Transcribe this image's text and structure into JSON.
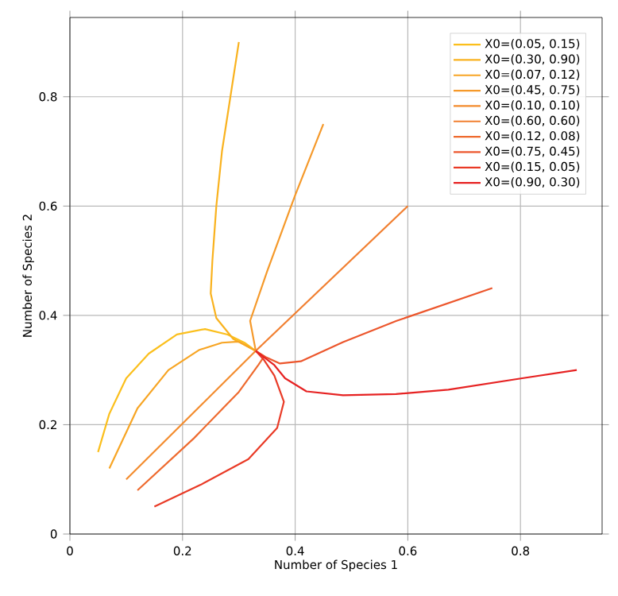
{
  "chart_data": {
    "type": "line",
    "xlabel": "Number of Species 1",
    "ylabel": "Number of Species 2",
    "xlim": [
      0,
      0.945
    ],
    "ylim": [
      0,
      0.945
    ],
    "xticks": [
      0,
      0.2,
      0.4,
      0.6,
      0.8
    ],
    "yticks": [
      0,
      0.2,
      0.4,
      0.6,
      0.8
    ],
    "grid": true,
    "legend": "top right",
    "marker": "none",
    "series": [
      {
        "name": "X0=(0.05, 0.15)",
        "color": "#fbbf1c",
        "x": [
          0.05,
          0.07,
          0.1,
          0.14,
          0.19,
          0.24,
          0.28,
          0.31,
          0.33
        ],
        "values": [
          0.15,
          0.22,
          0.285,
          0.33,
          0.365,
          0.375,
          0.365,
          0.35,
          0.335
        ]
      },
      {
        "name": "X0=(0.30, 0.90)",
        "color": "#f9b21e",
        "x": [
          0.3,
          0.285,
          0.27,
          0.26,
          0.253,
          0.25,
          0.26,
          0.29,
          0.33
        ],
        "values": [
          0.9,
          0.8,
          0.7,
          0.6,
          0.5,
          0.44,
          0.395,
          0.357,
          0.335
        ]
      },
      {
        "name": "X0=(0.07, 0.12)",
        "color": "#f7a524",
        "x": [
          0.07,
          0.12,
          0.175,
          0.23,
          0.27,
          0.3,
          0.33
        ],
        "values": [
          0.12,
          0.23,
          0.3,
          0.337,
          0.35,
          0.352,
          0.335
        ]
      },
      {
        "name": "X0=(0.45, 0.75)",
        "color": "#f5992a",
        "x": [
          0.45,
          0.4,
          0.35,
          0.32,
          0.33
        ],
        "values": [
          0.75,
          0.62,
          0.48,
          0.39,
          0.335
        ]
      },
      {
        "name": "X0=(0.10, 0.10)",
        "color": "#f38c2e",
        "x": [
          0.1,
          0.33
        ],
        "values": [
          0.1,
          0.335
        ]
      },
      {
        "name": "X0=(0.60, 0.60)",
        "color": "#f17f30",
        "x": [
          0.6,
          0.33
        ],
        "values": [
          0.6,
          0.335
        ]
      },
      {
        "name": "X0=(0.12, 0.08)",
        "color": "#ee6a2e",
        "x": [
          0.12,
          0.22,
          0.3,
          0.335,
          0.345,
          0.33
        ],
        "values": [
          0.08,
          0.175,
          0.26,
          0.31,
          0.325,
          0.335
        ]
      },
      {
        "name": "X0=(0.75, 0.45)",
        "color": "#ec562c",
        "x": [
          0.75,
          0.58,
          0.485,
          0.41,
          0.373,
          0.349,
          0.33
        ],
        "values": [
          0.45,
          0.39,
          0.351,
          0.316,
          0.312,
          0.323,
          0.335
        ]
      },
      {
        "name": "X0=(0.15, 0.05)",
        "color": "#e93a26",
        "x": [
          0.15,
          0.232,
          0.317,
          0.368,
          0.38,
          0.363,
          0.345,
          0.33
        ],
        "values": [
          0.05,
          0.09,
          0.137,
          0.194,
          0.242,
          0.29,
          0.318,
          0.335
        ]
      },
      {
        "name": "X0=(0.90, 0.30)",
        "color": "#e62222",
        "x": [
          0.9,
          0.803,
          0.672,
          0.579,
          0.485,
          0.42,
          0.382,
          0.363,
          0.33
        ],
        "values": [
          0.3,
          0.285,
          0.264,
          0.256,
          0.254,
          0.261,
          0.285,
          0.309,
          0.335
        ]
      }
    ]
  }
}
